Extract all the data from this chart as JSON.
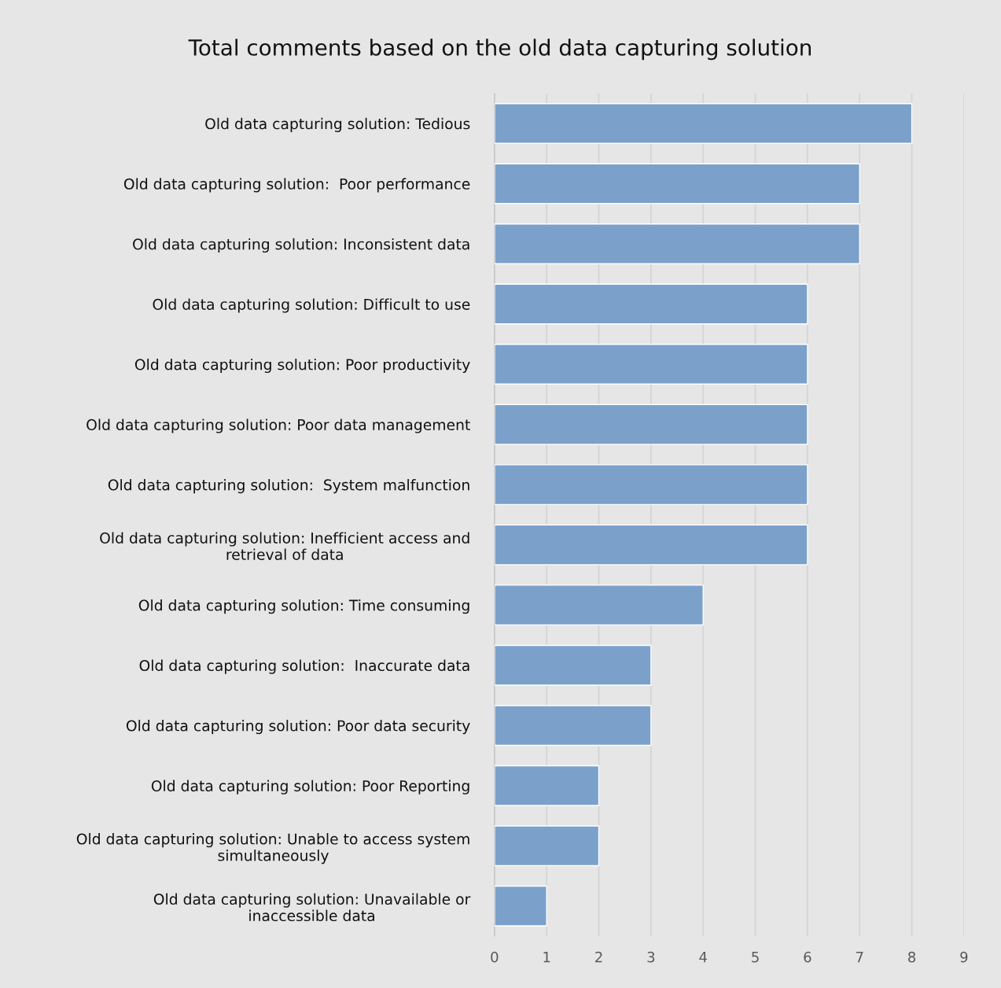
{
  "chart_data": {
    "type": "bar",
    "orientation": "horizontal",
    "title": "Total comments based on the old data capturing solution",
    "categories": [
      "Old data capturing solution: Tedious",
      "Old data capturing solution:  Poor performance",
      "Old data capturing solution: Inconsistent data",
      "Old data capturing solution: Difficult to use",
      "Old data capturing solution: Poor productivity",
      "Old data capturing solution: Poor data management",
      "Old data capturing solution:  System malfunction",
      "Old data capturing solution: Inefficient access and\nretrieval of data",
      "Old data capturing solution: Time consuming",
      "Old data capturing solution:  Inaccurate data",
      "Old data capturing solution: Poor data security",
      "Old data capturing solution: Poor Reporting",
      "Old data capturing solution: Unable to access system\nsimultaneously",
      "Old data capturing solution: Unavailable or\ninaccessible data"
    ],
    "values": [
      8,
      7,
      7,
      6,
      6,
      6,
      6,
      6,
      4,
      3,
      3,
      2,
      2,
      1
    ],
    "color": "#7ba1cb",
    "xlim": [
      0,
      9
    ],
    "xticks": [
      0,
      1,
      2,
      3,
      4,
      5,
      6,
      7,
      8,
      9
    ],
    "grid": "x"
  }
}
